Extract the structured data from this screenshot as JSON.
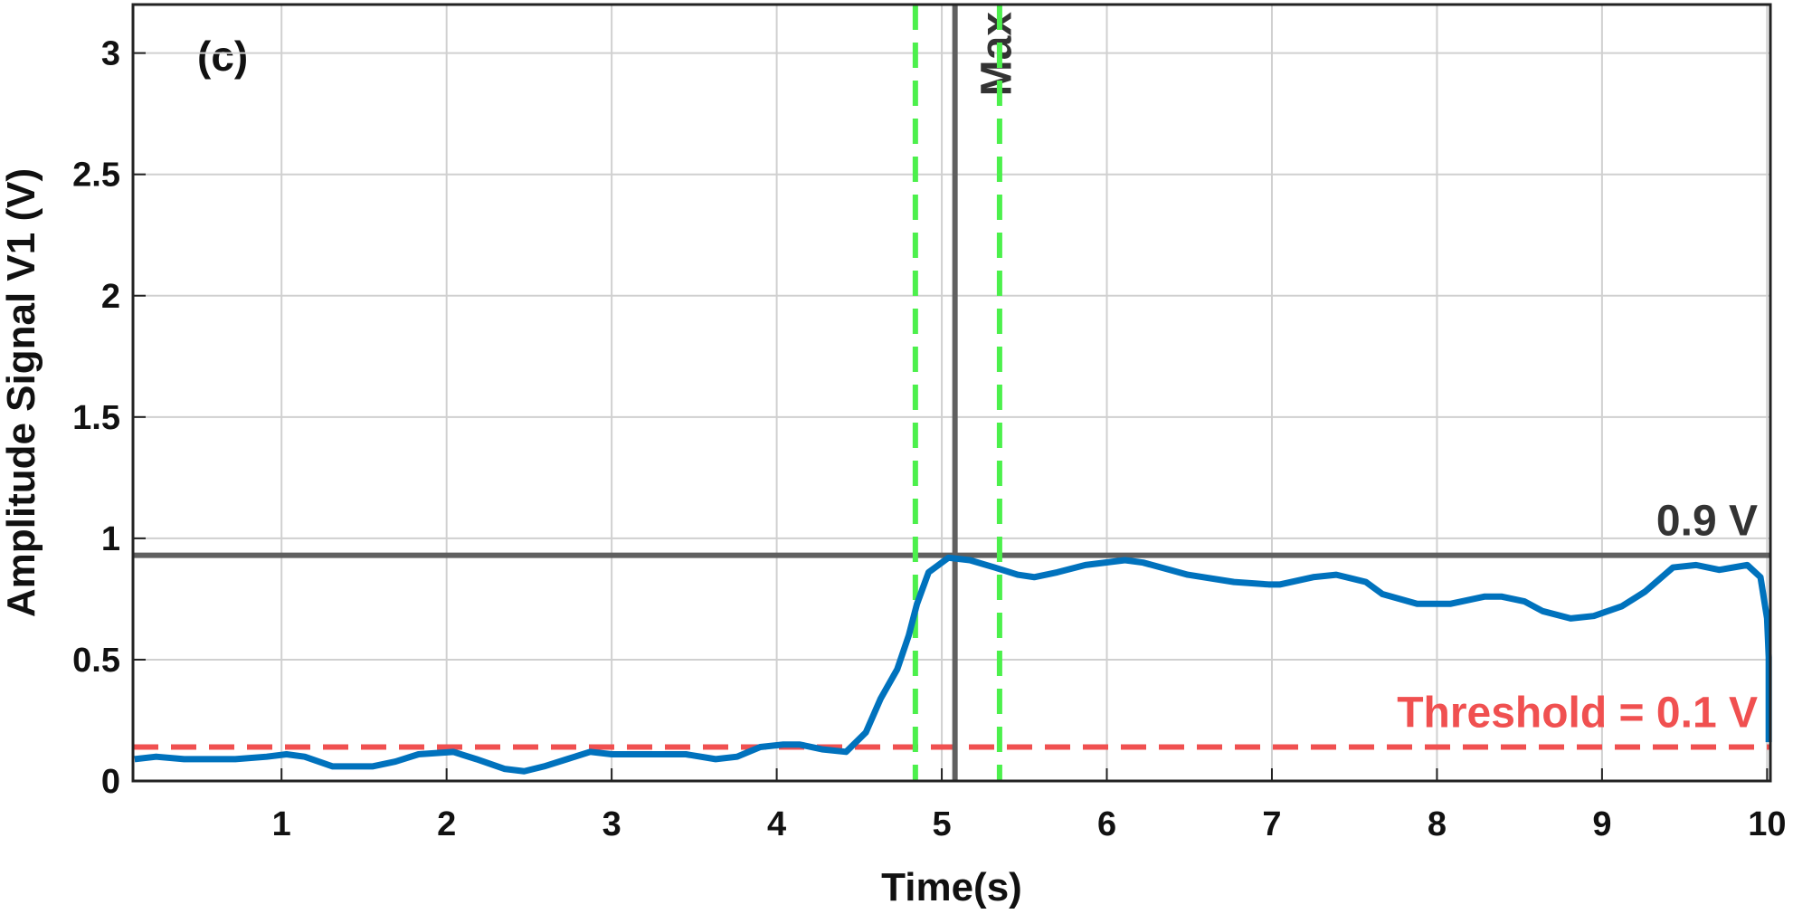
{
  "chart_data": {
    "type": "line",
    "xlabel": "Time(s)",
    "ylabel": "Amplitude Signal V1 (V)",
    "annotation": "(c)",
    "xlim": [
      0.1,
      10.02
    ],
    "ylim": [
      0,
      3.2
    ],
    "xticks": [
      1,
      2,
      3,
      4,
      5,
      6,
      7,
      8,
      9,
      10
    ],
    "yticks": [
      0,
      0.5,
      1,
      1.5,
      2,
      2.5,
      3
    ],
    "grid": true,
    "x": [
      0.11,
      0.24,
      0.41,
      0.59,
      0.72,
      0.91,
      1.03,
      1.14,
      1.31,
      1.55,
      1.69,
      1.83,
      2.04,
      2.18,
      2.35,
      2.47,
      2.59,
      2.73,
      2.87,
      3.0,
      3.32,
      3.45,
      3.63,
      3.76,
      3.9,
      4.04,
      4.14,
      4.28,
      4.42,
      4.54,
      4.63,
      4.73,
      4.8,
      4.85,
      4.92,
      5.04,
      5.17,
      5.32,
      5.46,
      5.56,
      5.7,
      5.87,
      6.11,
      6.22,
      6.49,
      6.77,
      6.98,
      7.05,
      7.25,
      7.39,
      7.57,
      7.67,
      7.88,
      8.08,
      8.29,
      8.39,
      8.53,
      8.64,
      8.81,
      8.95,
      9.12,
      9.26,
      9.43,
      9.57,
      9.71,
      9.88,
      9.96,
      10.0,
      10.01,
      10.01
    ],
    "series": [
      {
        "color": "#0072bd",
        "values": [
          0.09,
          0.1,
          0.09,
          0.09,
          0.09,
          0.1,
          0.11,
          0.1,
          0.06,
          0.06,
          0.08,
          0.11,
          0.12,
          0.09,
          0.05,
          0.04,
          0.06,
          0.09,
          0.12,
          0.11,
          0.11,
          0.11,
          0.09,
          0.1,
          0.14,
          0.15,
          0.15,
          0.13,
          0.12,
          0.2,
          0.34,
          0.46,
          0.6,
          0.73,
          0.86,
          0.92,
          0.91,
          0.88,
          0.85,
          0.84,
          0.86,
          0.89,
          0.91,
          0.9,
          0.85,
          0.82,
          0.81,
          0.81,
          0.84,
          0.85,
          0.82,
          0.77,
          0.73,
          0.73,
          0.76,
          0.76,
          0.74,
          0.7,
          0.67,
          0.68,
          0.72,
          0.78,
          0.88,
          0.89,
          0.87,
          0.89,
          0.84,
          0.67,
          0.51,
          0.16
        ]
      }
    ],
    "hlines": [
      {
        "value": 0.93,
        "label": "0.9 V",
        "color": "#606060",
        "style": "solid"
      },
      {
        "value": 0.14,
        "label": "Threshold = 0.1 V",
        "color": "#f05050",
        "style": "dashed"
      }
    ],
    "vlines": [
      {
        "value": 5.08,
        "label": "Max",
        "color": "#606060",
        "style": "solid"
      },
      {
        "value": 4.84,
        "color": "#4cf04c",
        "style": "dashed"
      },
      {
        "value": 5.35,
        "color": "#4cf04c",
        "style": "dashed"
      }
    ]
  }
}
